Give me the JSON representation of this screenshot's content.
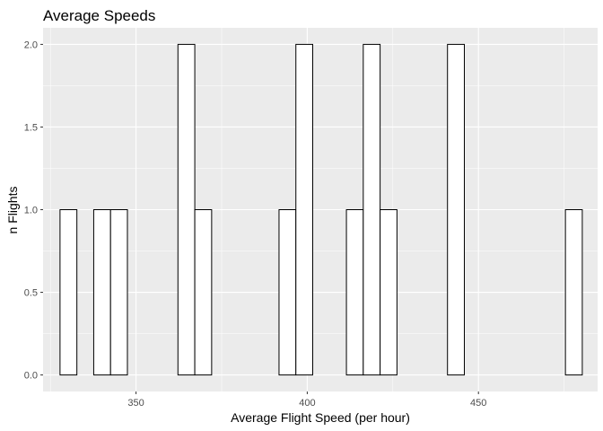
{
  "chart_data": {
    "type": "bar",
    "title": "Average Speeds",
    "xlabel": "Average Flight Speed (per hour)",
    "ylabel": "n Flights",
    "xlim": [
      322.85,
      484.8
    ],
    "ylim": [
      -0.1,
      2.1
    ],
    "x_ticks": [
      350,
      400,
      450
    ],
    "y_ticks": [
      0.0,
      0.5,
      1.0,
      1.5,
      2.0
    ],
    "y_tick_labels": [
      "0.0",
      "0.5",
      "1.0",
      "1.5",
      "2.0"
    ],
    "bin_width": 4.92,
    "bin_start": 327.8,
    "bins": 31,
    "counts": [
      1,
      0,
      1,
      1,
      0,
      0,
      0,
      2,
      1,
      0,
      0,
      0,
      0,
      1,
      2,
      0,
      0,
      1,
      2,
      1,
      0,
      0,
      0,
      2,
      0,
      0,
      0,
      0,
      0,
      0,
      1
    ],
    "grid": true,
    "legend": "none",
    "colors": {
      "panel_bg": "#ebebeb",
      "grid_major": "#ffffff",
      "bar_fill": "#ffffff",
      "bar_stroke": "#000000",
      "tick": "#333333"
    }
  }
}
